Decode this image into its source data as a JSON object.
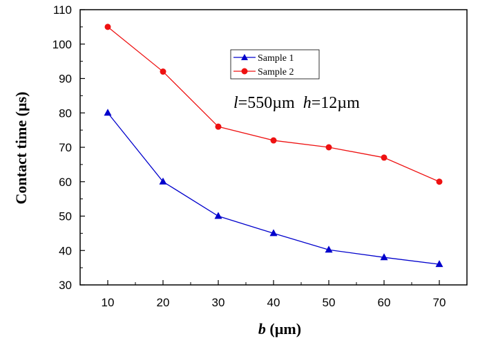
{
  "chart_data": {
    "type": "line",
    "title": "",
    "xlabel_italic": "b",
    "xlabel_rest": " (µm)",
    "ylabel": "Contact time  (µs)",
    "x": [
      10,
      20,
      30,
      40,
      50,
      60,
      70
    ],
    "xlim": [
      5,
      75
    ],
    "ylim": [
      30,
      110
    ],
    "xticks": [
      10,
      20,
      30,
      40,
      50,
      60,
      70
    ],
    "yticks": [
      30,
      40,
      50,
      60,
      70,
      80,
      90,
      100,
      110
    ],
    "grid": false,
    "legend_position": "top-center",
    "series": [
      {
        "name": "Sample 1",
        "marker": "triangle",
        "color": "#0000cc",
        "values": [
          80,
          60,
          50,
          45,
          40.2,
          38,
          36
        ]
      },
      {
        "name": "Sample 2",
        "marker": "circle",
        "color": "#ee1111",
        "values": [
          105,
          92,
          76,
          72,
          70,
          67,
          60
        ]
      }
    ],
    "annotation": {
      "l_symbol": "l",
      "l_value": "=550µm",
      "h_symbol": "h",
      "h_value": "=12µm"
    }
  }
}
